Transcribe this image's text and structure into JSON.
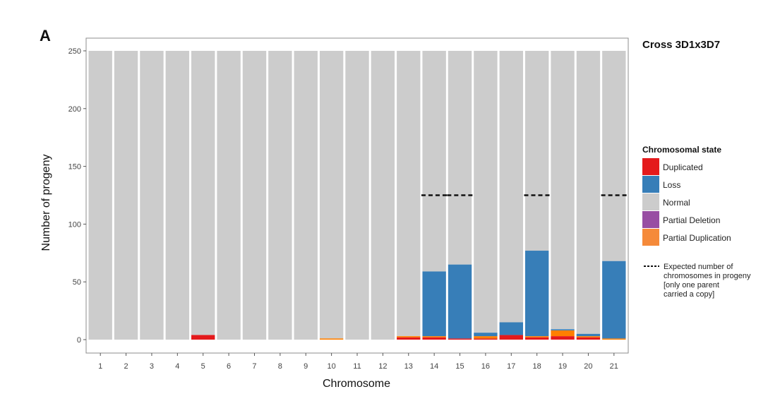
{
  "panel_label": "A",
  "chart_data": {
    "type": "bar",
    "stacked": true,
    "title": "Cross 3D1x3D7",
    "xlabel": "Chromosome",
    "ylabel": "Number of progeny",
    "ylim": [
      0,
      250
    ],
    "yticks": [
      0,
      50,
      100,
      150,
      200,
      250
    ],
    "total": 250,
    "categories": [
      "1",
      "2",
      "3",
      "4",
      "5",
      "6",
      "7",
      "8",
      "9",
      "10",
      "11",
      "12",
      "13",
      "14",
      "15",
      "16",
      "17",
      "18",
      "19",
      "20",
      "21"
    ],
    "series": [
      {
        "name": "Duplicated",
        "color": "#E41A1C",
        "values": [
          0,
          0,
          0,
          0,
          4,
          0,
          0,
          0,
          0,
          0,
          0,
          0,
          2,
          2,
          1,
          1,
          4,
          2,
          3,
          2,
          0
        ]
      },
      {
        "name": "Partial Duplication",
        "color": "#FF7F00",
        "values": [
          0,
          0,
          0,
          0,
          0,
          0,
          0,
          0,
          0,
          1,
          0,
          0,
          1,
          1,
          0,
          2,
          0,
          1,
          5,
          1,
          1
        ]
      },
      {
        "name": "Partial Deletion",
        "color": "#984EA3",
        "values": [
          0,
          0,
          0,
          0,
          0,
          0,
          0,
          0,
          0,
          0,
          0,
          0,
          0,
          0,
          0,
          0,
          0,
          0,
          0,
          0,
          0
        ]
      },
      {
        "name": "Loss",
        "color": "#377EB8",
        "values": [
          0,
          0,
          0,
          0,
          0,
          0,
          0,
          0,
          0,
          0,
          0,
          0,
          0,
          56,
          64,
          3,
          11,
          74,
          1,
          2,
          67
        ]
      }
    ],
    "normal_color": "#CCCCCC",
    "expected": {
      "value": 125,
      "chromosomes": [
        "14",
        "15",
        "18",
        "21"
      ]
    },
    "legend": {
      "title": "Chromosomal state",
      "placement": "right",
      "entries": [
        {
          "label": "Duplicated",
          "color": "#E41A1C"
        },
        {
          "label": "Loss",
          "color": "#377EB8"
        },
        {
          "label": "Normal",
          "color": "#CCCCCC"
        },
        {
          "label": "Partial Deletion",
          "color": "#984EA3"
        },
        {
          "label": "Partial Duplication",
          "color": "#F58A3A"
        }
      ],
      "expected_note": [
        "Expected number of",
        "chromosomes in progeny",
        "[only one parent",
        "carried a copy]"
      ]
    }
  }
}
